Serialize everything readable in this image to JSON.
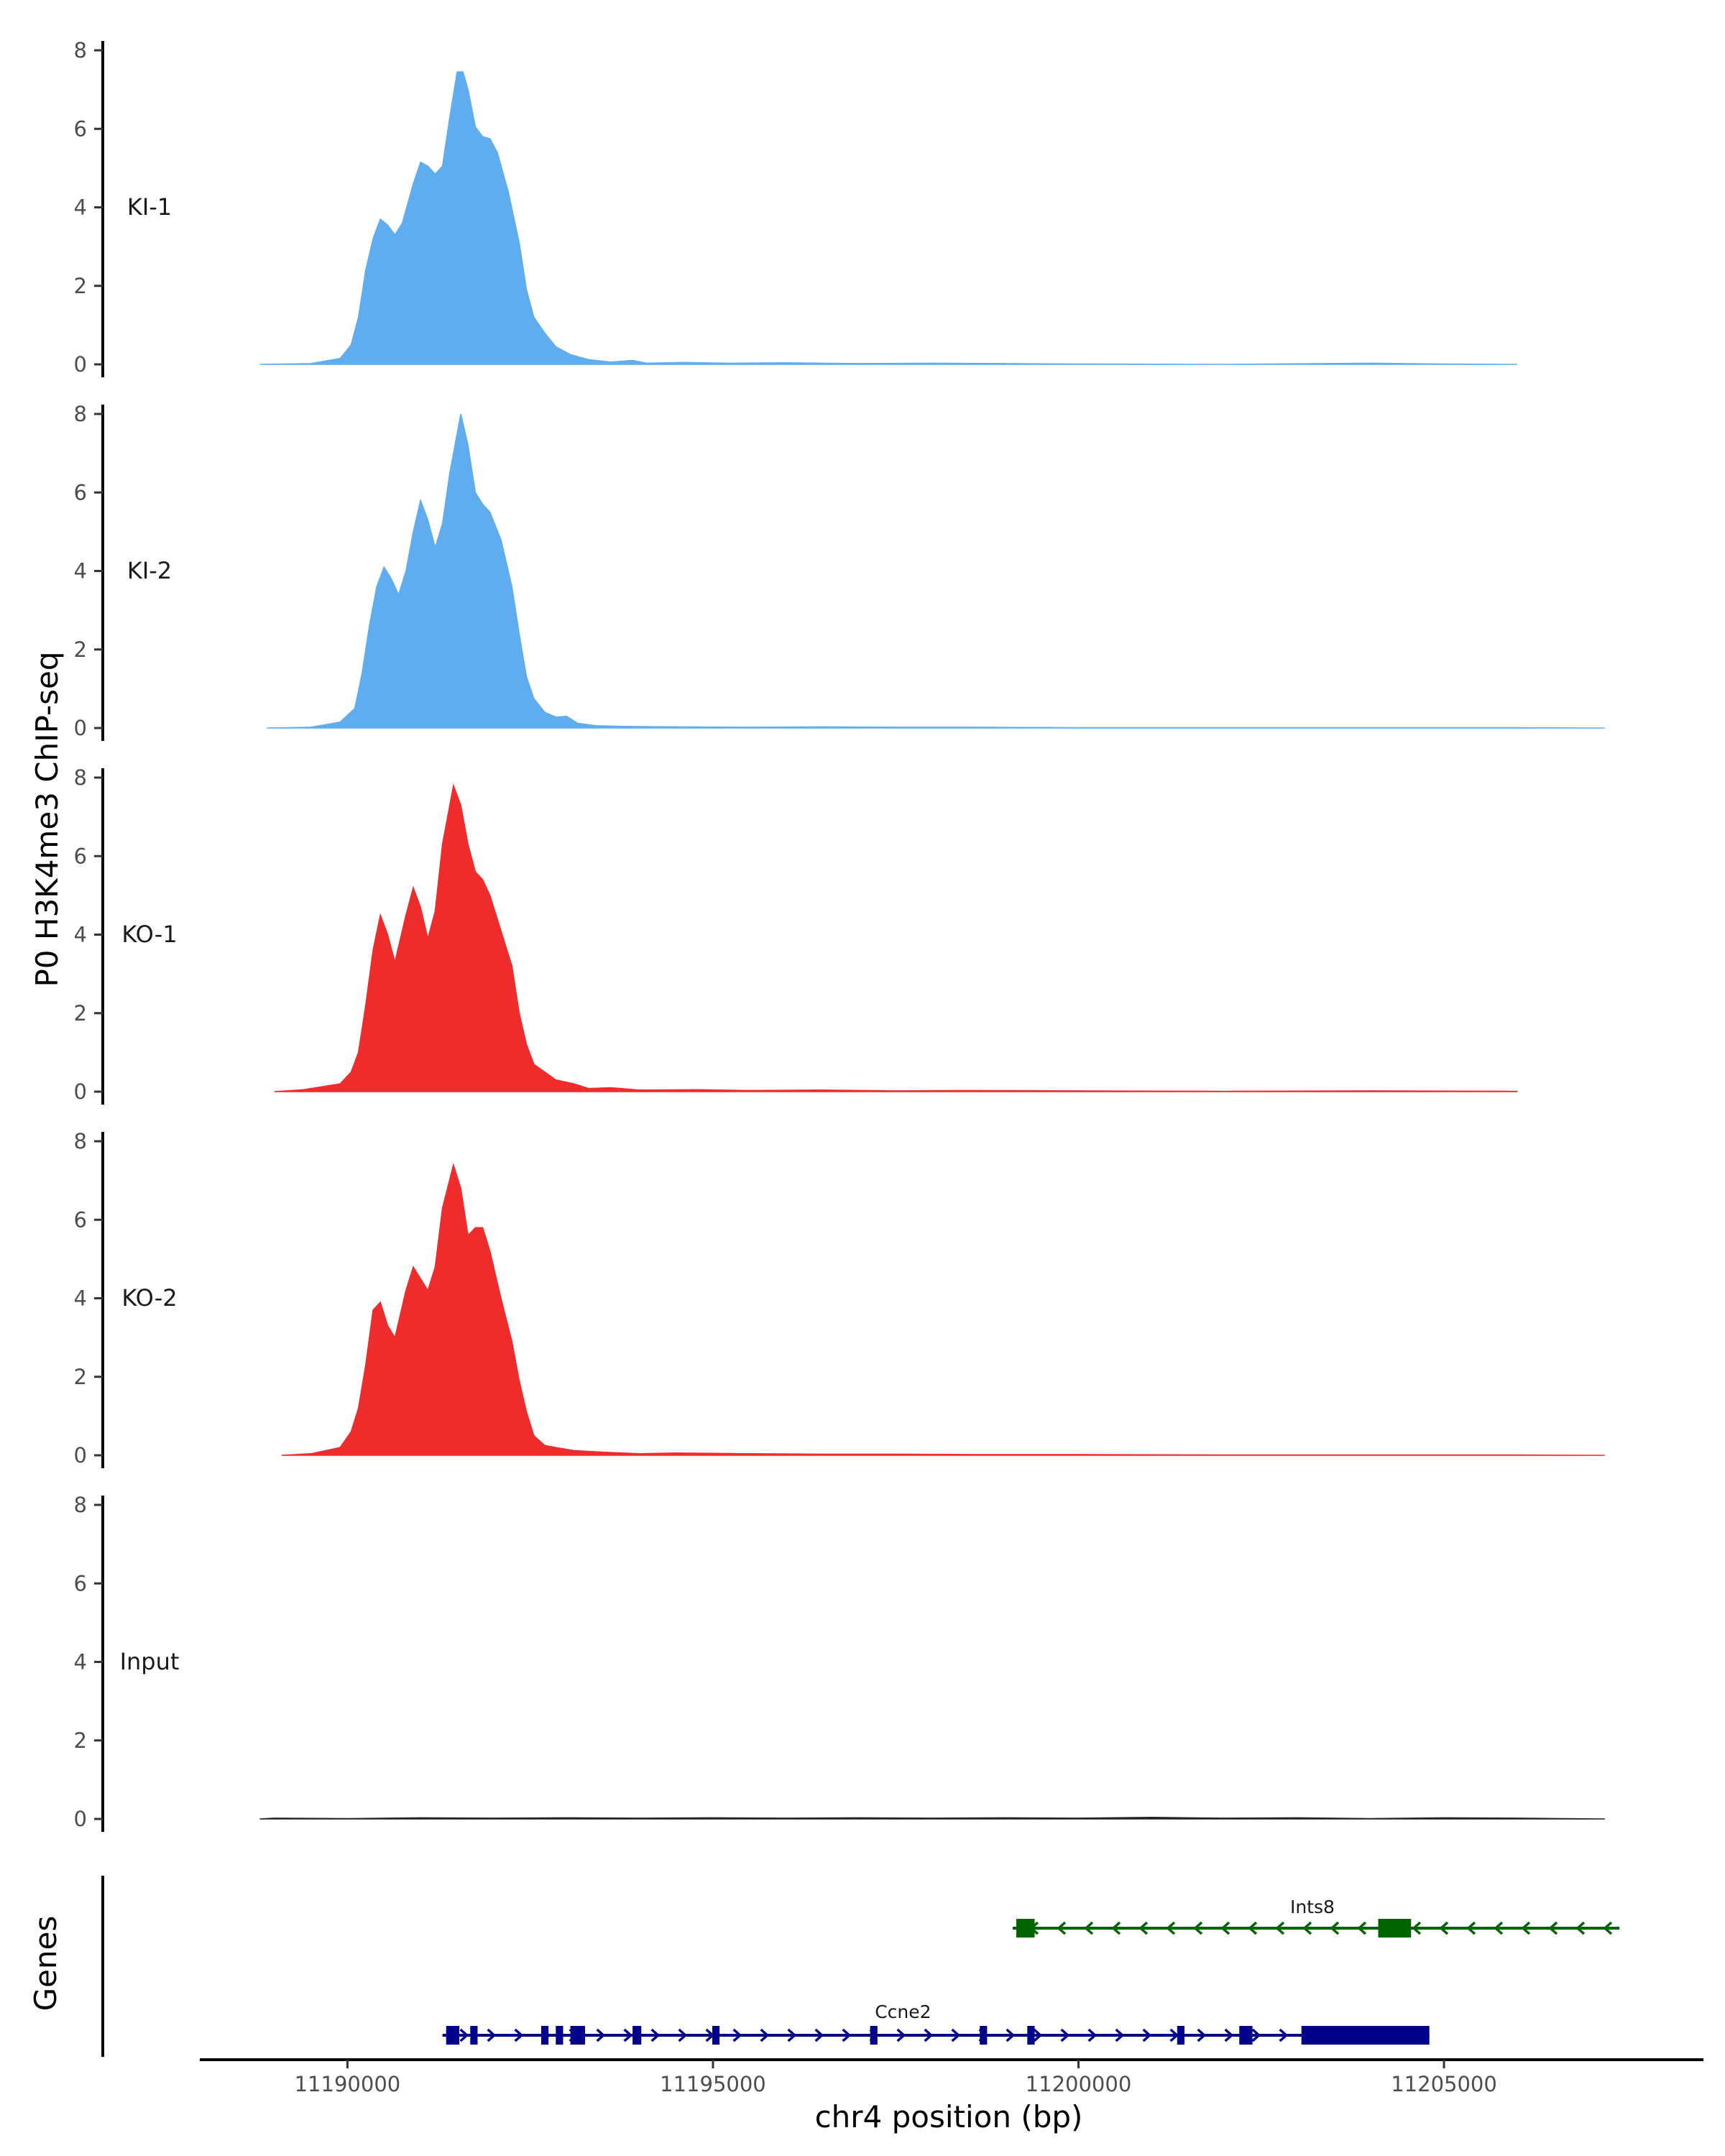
{
  "chart_data": {
    "type": "area",
    "ylabel": "P0 H3K4me3 ChIP-seq",
    "xlabel": "chr4 position (bp)",
    "x_range": [
      11188000,
      11208500
    ],
    "x_ticks": [
      11190000,
      11195000,
      11200000,
      11205000
    ],
    "x_tick_labels": [
      "11190000",
      "11195000",
      "11200000",
      "11205000"
    ],
    "y_range": [
      0,
      8.4
    ],
    "y_ticks": [
      0,
      2,
      4,
      6,
      8
    ],
    "y_tick_labels": [
      "0",
      "2",
      "4",
      "6",
      "8"
    ],
    "grid": false,
    "tracks": [
      {
        "name": "KI-1",
        "color": "#5FADEE",
        "points": [
          [
            11188800,
            0
          ],
          [
            11189500,
            0.02
          ],
          [
            11189900,
            0.15
          ],
          [
            11190050,
            0.5
          ],
          [
            11190150,
            1.2
          ],
          [
            11190250,
            2.4
          ],
          [
            11190350,
            3.2
          ],
          [
            11190450,
            3.7
          ],
          [
            11190550,
            3.55
          ],
          [
            11190650,
            3.3
          ],
          [
            11190750,
            3.6
          ],
          [
            11190900,
            4.6
          ],
          [
            11191000,
            5.15
          ],
          [
            11191100,
            5.05
          ],
          [
            11191200,
            4.85
          ],
          [
            11191300,
            5.05
          ],
          [
            11191400,
            6.3
          ],
          [
            11191500,
            7.45
          ],
          [
            11191580,
            7.45
          ],
          [
            11191650,
            7.0
          ],
          [
            11191750,
            6.05
          ],
          [
            11191850,
            5.8
          ],
          [
            11191950,
            5.75
          ],
          [
            11192050,
            5.4
          ],
          [
            11192200,
            4.4
          ],
          [
            11192350,
            3.1
          ],
          [
            11192450,
            1.9
          ],
          [
            11192550,
            1.2
          ],
          [
            11192700,
            0.8
          ],
          [
            11192850,
            0.45
          ],
          [
            11193050,
            0.25
          ],
          [
            11193300,
            0.12
          ],
          [
            11193600,
            0.06
          ],
          [
            11193900,
            0.1
          ],
          [
            11194100,
            0.03
          ],
          [
            11194600,
            0.05
          ],
          [
            11195200,
            0.03
          ],
          [
            11196000,
            0.04
          ],
          [
            11197000,
            0.02
          ],
          [
            11198000,
            0.03
          ],
          [
            11199000,
            0.02
          ],
          [
            11200000,
            0.01
          ],
          [
            11202000,
            0.0
          ],
          [
            11204000,
            0.03
          ],
          [
            11205000,
            0.01
          ],
          [
            11206000,
            0.0
          ]
        ]
      },
      {
        "name": "KI-2",
        "color": "#5FADEE",
        "points": [
          [
            11188900,
            0
          ],
          [
            11189500,
            0.02
          ],
          [
            11189900,
            0.15
          ],
          [
            11190100,
            0.5
          ],
          [
            11190200,
            1.4
          ],
          [
            11190300,
            2.6
          ],
          [
            11190400,
            3.6
          ],
          [
            11190500,
            4.1
          ],
          [
            11190600,
            3.8
          ],
          [
            11190700,
            3.4
          ],
          [
            11190800,
            4.0
          ],
          [
            11190900,
            5.0
          ],
          [
            11191000,
            5.8
          ],
          [
            11191100,
            5.3
          ],
          [
            11191200,
            4.6
          ],
          [
            11191300,
            5.2
          ],
          [
            11191400,
            6.5
          ],
          [
            11191550,
            8.0
          ],
          [
            11191650,
            7.2
          ],
          [
            11191750,
            6.0
          ],
          [
            11191850,
            5.7
          ],
          [
            11191950,
            5.5
          ],
          [
            11192100,
            4.8
          ],
          [
            11192250,
            3.6
          ],
          [
            11192350,
            2.4
          ],
          [
            11192450,
            1.3
          ],
          [
            11192550,
            0.75
          ],
          [
            11192700,
            0.4
          ],
          [
            11192850,
            0.28
          ],
          [
            11193000,
            0.3
          ],
          [
            11193150,
            0.12
          ],
          [
            11193400,
            0.06
          ],
          [
            11193800,
            0.04
          ],
          [
            11194500,
            0.03
          ],
          [
            11195500,
            0.02
          ],
          [
            11196500,
            0.03
          ],
          [
            11197500,
            0.02
          ],
          [
            11198500,
            0.02
          ],
          [
            11200000,
            0.01
          ],
          [
            11202000,
            0.01
          ],
          [
            11204000,
            0.01
          ],
          [
            11206000,
            0.01
          ],
          [
            11207200,
            0
          ]
        ]
      },
      {
        "name": "KO-1",
        "color": "#EE2C2C",
        "points": [
          [
            11189000,
            0
          ],
          [
            11189400,
            0.05
          ],
          [
            11189900,
            0.2
          ],
          [
            11190050,
            0.5
          ],
          [
            11190150,
            1.0
          ],
          [
            11190250,
            2.2
          ],
          [
            11190350,
            3.6
          ],
          [
            11190450,
            4.5
          ],
          [
            11190550,
            4.0
          ],
          [
            11190650,
            3.3
          ],
          [
            11190800,
            4.5
          ],
          [
            11190900,
            5.2
          ],
          [
            11191000,
            4.7
          ],
          [
            11191100,
            3.9
          ],
          [
            11191200,
            4.6
          ],
          [
            11191300,
            6.3
          ],
          [
            11191450,
            7.8
          ],
          [
            11191550,
            7.3
          ],
          [
            11191650,
            6.3
          ],
          [
            11191750,
            5.6
          ],
          [
            11191850,
            5.4
          ],
          [
            11191950,
            5.0
          ],
          [
            11192100,
            4.1
          ],
          [
            11192250,
            3.2
          ],
          [
            11192350,
            2.0
          ],
          [
            11192450,
            1.2
          ],
          [
            11192550,
            0.7
          ],
          [
            11192700,
            0.5
          ],
          [
            11192850,
            0.3
          ],
          [
            11193100,
            0.2
          ],
          [
            11193300,
            0.08
          ],
          [
            11193600,
            0.1
          ],
          [
            11194000,
            0.04
          ],
          [
            11194800,
            0.05
          ],
          [
            11195500,
            0.03
          ],
          [
            11196500,
            0.04
          ],
          [
            11197500,
            0.02
          ],
          [
            11198500,
            0.03
          ],
          [
            11200000,
            0.02
          ],
          [
            11202000,
            0.01
          ],
          [
            11204000,
            0.02
          ],
          [
            11206000,
            0.01
          ]
        ]
      },
      {
        "name": "KO-2",
        "color": "#EE2C2C",
        "points": [
          [
            11189100,
            0
          ],
          [
            11189500,
            0.04
          ],
          [
            11189900,
            0.2
          ],
          [
            11190050,
            0.6
          ],
          [
            11190150,
            1.2
          ],
          [
            11190250,
            2.3
          ],
          [
            11190350,
            3.7
          ],
          [
            11190450,
            3.9
          ],
          [
            11190550,
            3.3
          ],
          [
            11190650,
            3.0
          ],
          [
            11190800,
            4.2
          ],
          [
            11190900,
            4.8
          ],
          [
            11191000,
            4.5
          ],
          [
            11191100,
            4.2
          ],
          [
            11191200,
            4.8
          ],
          [
            11191300,
            6.3
          ],
          [
            11191450,
            7.4
          ],
          [
            11191550,
            6.8
          ],
          [
            11191650,
            5.6
          ],
          [
            11191750,
            5.8
          ],
          [
            11191850,
            5.8
          ],
          [
            11191950,
            5.2
          ],
          [
            11192100,
            4.0
          ],
          [
            11192250,
            2.9
          ],
          [
            11192350,
            1.9
          ],
          [
            11192450,
            1.1
          ],
          [
            11192550,
            0.5
          ],
          [
            11192700,
            0.25
          ],
          [
            11192850,
            0.2
          ],
          [
            11193100,
            0.12
          ],
          [
            11193500,
            0.08
          ],
          [
            11194000,
            0.04
          ],
          [
            11194500,
            0.06
          ],
          [
            11195500,
            0.04
          ],
          [
            11196500,
            0.03
          ],
          [
            11197500,
            0.03
          ],
          [
            11198500,
            0.02
          ],
          [
            11200000,
            0.02
          ],
          [
            11202000,
            0.01
          ],
          [
            11204000,
            0.01
          ],
          [
            11206000,
            0.01
          ],
          [
            11207200,
            0
          ]
        ]
      },
      {
        "name": "Input",
        "color": "#222222",
        "points": [
          [
            11188800,
            0
          ],
          [
            11189000,
            0.02
          ],
          [
            11190000,
            0.01
          ],
          [
            11191000,
            0.03
          ],
          [
            11192000,
            0.02
          ],
          [
            11193000,
            0.03
          ],
          [
            11194000,
            0.02
          ],
          [
            11195000,
            0.03
          ],
          [
            11196000,
            0.02
          ],
          [
            11197000,
            0.03
          ],
          [
            11198000,
            0.02
          ],
          [
            11199000,
            0.03
          ],
          [
            11200000,
            0.02
          ],
          [
            11201000,
            0.04
          ],
          [
            11202000,
            0.02
          ],
          [
            11203000,
            0.03
          ],
          [
            11204000,
            0.01
          ],
          [
            11205000,
            0.03
          ],
          [
            11206000,
            0.02
          ],
          [
            11207200,
            0
          ]
        ]
      }
    ],
    "gene_track": {
      "label": "Genes",
      "genes": [
        {
          "name": "Ints8",
          "strand": "-",
          "color": "#006400",
          "start": 11199100,
          "end": 11207400,
          "label_x": 11203200,
          "exons": [
            [
              11199150,
              11199400
            ],
            [
              11204100,
              11204550
            ]
          ]
        },
        {
          "name": "Ccne2",
          "strand": "+",
          "color": "#00008B",
          "start": 11191300,
          "end": 11204800,
          "label_x": 11197600,
          "exons": [
            [
              11191350,
              11191530
            ],
            [
              11191680,
              11191780
            ],
            [
              11192650,
              11192750
            ],
            [
              11192850,
              11192950
            ],
            [
              11193050,
              11193250
            ],
            [
              11193900,
              11194020
            ],
            [
              11194990,
              11195090
            ],
            [
              11197150,
              11197250
            ],
            [
              11198650,
              11198750
            ],
            [
              11199300,
              11199400
            ],
            [
              11201350,
              11201450
            ],
            [
              11202200,
              11202380
            ],
            [
              11203050,
              11204800
            ]
          ]
        }
      ]
    }
  }
}
